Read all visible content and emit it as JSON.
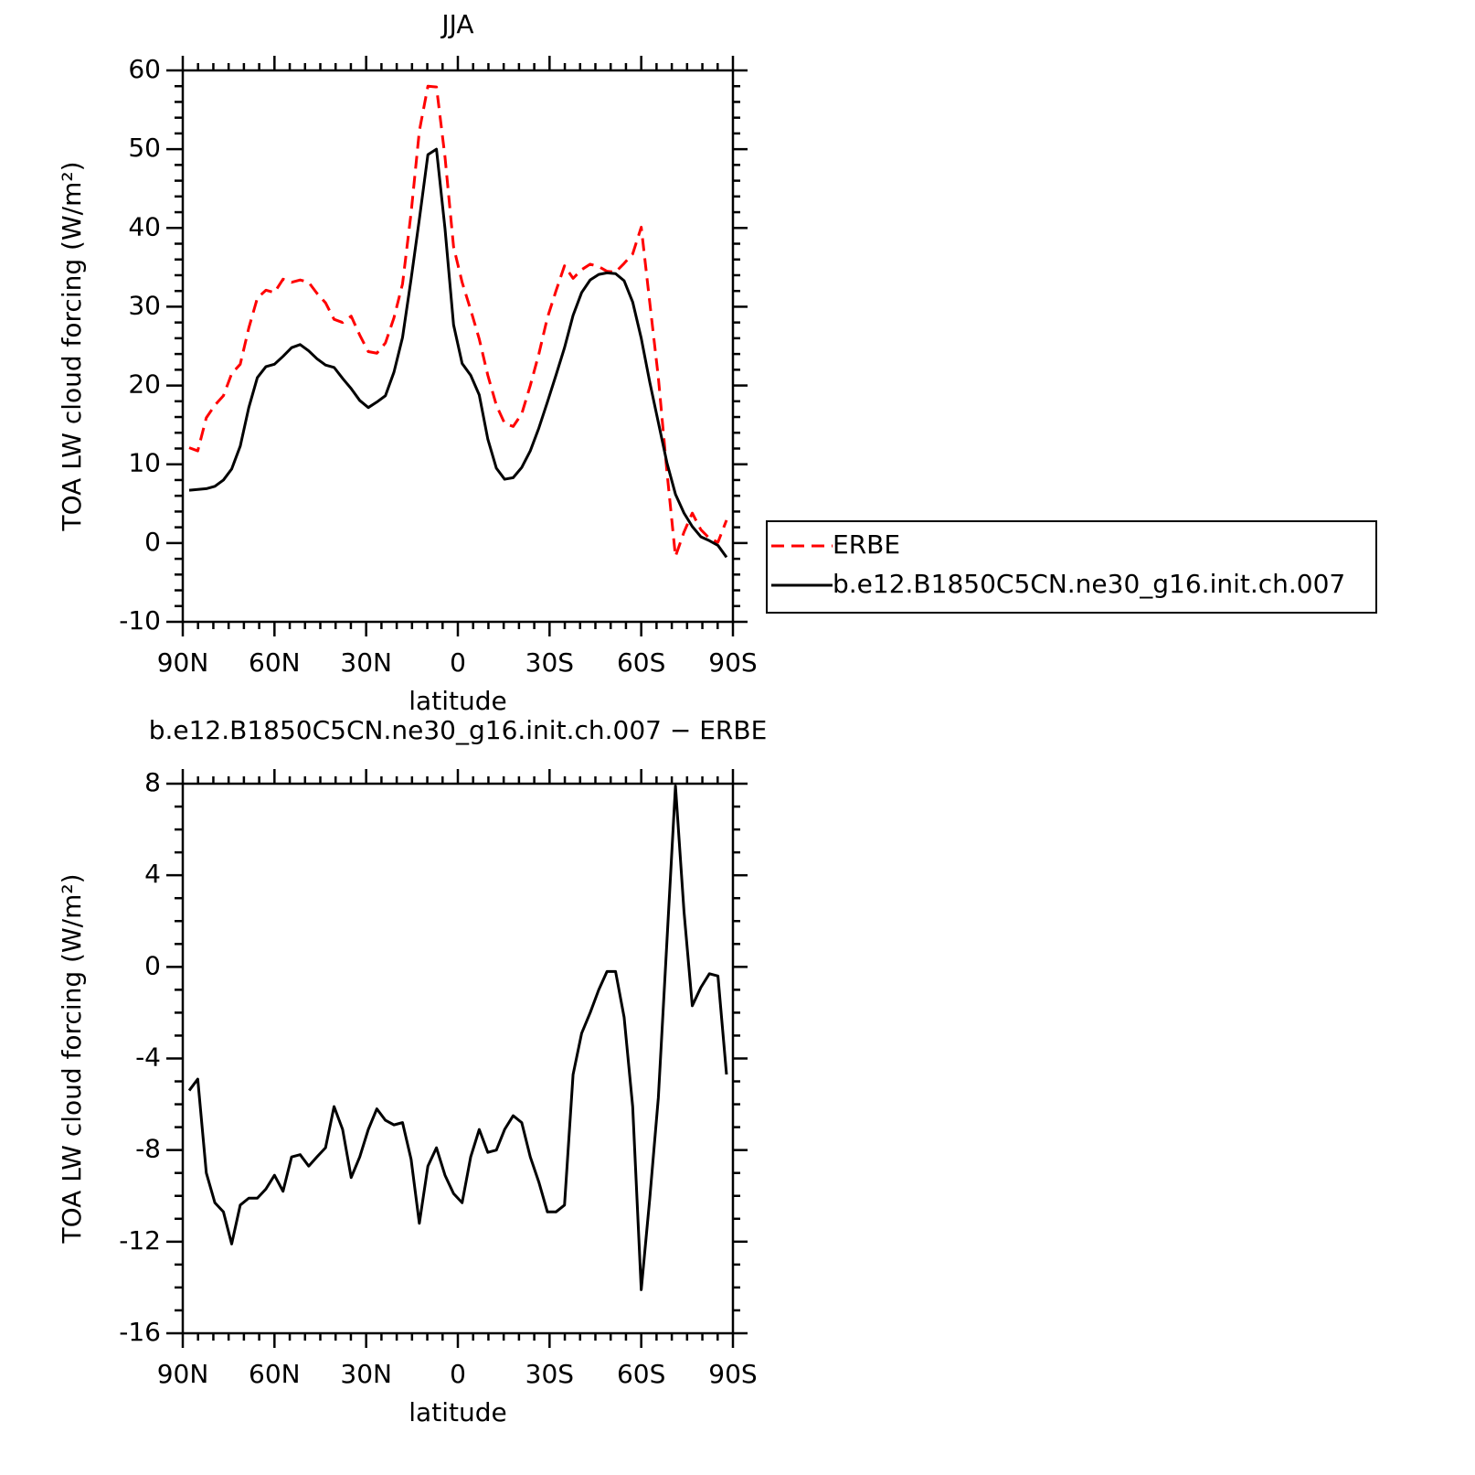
{
  "chart_data": [
    {
      "type": "line",
      "title": "JJA",
      "xlabel": "latitude",
      "ylabel": "TOA LW cloud forcing (W/m²)",
      "x": [
        87.9,
        85.1,
        82.3,
        79.5,
        76.7,
        74.0,
        71.2,
        68.4,
        65.6,
        62.8,
        60.0,
        57.2,
        54.4,
        51.6,
        48.8,
        46.1,
        43.3,
        40.5,
        37.7,
        34.9,
        32.1,
        29.3,
        26.5,
        23.7,
        20.9,
        18.1,
        15.3,
        12.6,
        9.8,
        7.0,
        4.2,
        1.4,
        -1.4,
        -4.2,
        -7.0,
        -9.8,
        -12.6,
        -15.3,
        -18.1,
        -20.9,
        -23.7,
        -26.5,
        -29.3,
        -32.1,
        -34.9,
        -37.7,
        -40.5,
        -43.3,
        -46.1,
        -48.8,
        -51.6,
        -54.4,
        -57.2,
        -60.0,
        -62.8,
        -65.6,
        -68.4,
        -71.2,
        -74.0,
        -76.7,
        -79.5,
        -82.3,
        -85.1,
        -87.9
      ],
      "series": [
        {
          "name": "ERBE",
          "color": "#ff0000",
          "dash": true,
          "values": [
            12.1,
            11.7,
            15.9,
            17.5,
            18.7,
            21.5,
            22.7,
            27.3,
            31.1,
            32.1,
            31.8,
            33.5,
            33.1,
            33.4,
            33.1,
            31.7,
            30.5,
            28.4,
            28.0,
            28.8,
            26.4,
            24.3,
            24.1,
            25.4,
            28.6,
            32.9,
            41.9,
            52.3,
            58.0,
            57.9,
            49.0,
            37.6,
            33.1,
            29.6,
            25.9,
            21.3,
            17.5,
            15.2,
            14.8,
            16.4,
            20.0,
            24.0,
            28.6,
            32.0,
            35.2,
            33.6,
            34.7,
            35.4,
            35.1,
            34.5,
            34.4,
            35.5,
            36.7,
            40.1,
            30.5,
            21.0,
            9.1,
            -1.7,
            1.4,
            3.8,
            1.7,
            0.6,
            0.1,
            2.9
          ]
        },
        {
          "name": "b.e12.B1850C5CN.ne30_g16.init.ch.007",
          "color": "#000000",
          "dash": false,
          "values": [
            6.7,
            6.8,
            6.9,
            7.2,
            8.0,
            9.4,
            12.3,
            17.2,
            21.0,
            22.4,
            22.7,
            23.7,
            24.8,
            25.2,
            24.4,
            23.4,
            22.6,
            22.3,
            20.9,
            19.6,
            18.1,
            17.2,
            17.9,
            18.7,
            21.7,
            26.1,
            33.5,
            41.1,
            49.3,
            50.0,
            39.9,
            27.7,
            22.8,
            21.3,
            18.8,
            13.2,
            9.5,
            8.1,
            8.3,
            9.6,
            11.7,
            14.6,
            17.9,
            21.3,
            24.8,
            28.9,
            31.8,
            33.4,
            34.1,
            34.3,
            34.2,
            33.3,
            30.6,
            26.0,
            20.4,
            15.3,
            10.2,
            6.2,
            3.8,
            2.1,
            0.8,
            0.3,
            -0.3,
            -1.8
          ]
        }
      ],
      "xlim": [
        90,
        -90
      ],
      "xticks": [
        {
          "value": 90,
          "label": "90N"
        },
        {
          "value": 60,
          "label": "60N"
        },
        {
          "value": 30,
          "label": "30N"
        },
        0,
        {
          "value": -30,
          "label": "30S"
        },
        {
          "value": -60,
          "label": "60S"
        },
        {
          "value": -90,
          "label": "90S"
        }
      ],
      "ylim": [
        -10,
        60
      ],
      "yticks": [
        -10,
        0,
        10,
        20,
        30,
        40,
        50,
        60
      ],
      "xminor": 6,
      "yminor": 5,
      "legend": "right"
    },
    {
      "type": "line",
      "title": "b.e12.B1850C5CN.ne30_g16.init.ch.007 − ERBE",
      "xlabel": "latitude",
      "ylabel": "TOA LW cloud forcing (W/m²)",
      "x": [
        87.9,
        85.1,
        82.3,
        79.5,
        76.7,
        74.0,
        71.2,
        68.4,
        65.6,
        62.8,
        60.0,
        57.2,
        54.4,
        51.6,
        48.8,
        46.1,
        43.3,
        40.5,
        37.7,
        34.9,
        32.1,
        29.3,
        26.5,
        23.7,
        20.9,
        18.1,
        15.3,
        12.6,
        9.8,
        7.0,
        4.2,
        1.4,
        -1.4,
        -4.2,
        -7.0,
        -9.8,
        -12.6,
        -15.3,
        -18.1,
        -20.9,
        -23.7,
        -26.5,
        -29.3,
        -32.1,
        -34.9,
        -37.7,
        -40.5,
        -43.3,
        -46.1,
        -48.8,
        -51.6,
        -54.4,
        -57.2,
        -60.0,
        -62.8,
        -65.6,
        -68.4,
        -71.2,
        -74.0,
        -76.7,
        -79.5,
        -82.3,
        -85.1,
        -87.9
      ],
      "series": [
        {
          "color": "#000000",
          "dash": false,
          "values": [
            -5.4,
            -4.9,
            -9.0,
            -10.3,
            -10.7,
            -12.1,
            -10.4,
            -10.1,
            -10.1,
            -9.7,
            -9.1,
            -9.8,
            -8.3,
            -8.2,
            -8.7,
            -8.3,
            -7.9,
            -6.1,
            -7.1,
            -9.2,
            -8.3,
            -7.1,
            -6.2,
            -6.7,
            -6.9,
            -6.8,
            -8.4,
            -11.2,
            -8.7,
            -7.9,
            -9.1,
            -9.9,
            -10.3,
            -8.3,
            -7.1,
            -8.1,
            -8.0,
            -7.1,
            -6.5,
            -6.8,
            -8.3,
            -9.4,
            -10.7,
            -10.7,
            -10.4,
            -4.7,
            -2.9,
            -2.0,
            -1.0,
            -0.2,
            -0.2,
            -2.2,
            -6.1,
            -14.1,
            -10.1,
            -5.7,
            1.1,
            7.9,
            2.4,
            -1.7,
            -0.9,
            -0.3,
            -0.4,
            -4.7
          ]
        }
      ],
      "xlim": [
        90,
        -90
      ],
      "xticks": [
        {
          "value": 90,
          "label": "90N"
        },
        {
          "value": 60,
          "label": "60N"
        },
        {
          "value": 30,
          "label": "30N"
        },
        0,
        {
          "value": -30,
          "label": "30S"
        },
        {
          "value": -60,
          "label": "60S"
        },
        {
          "value": -90,
          "label": "90S"
        }
      ],
      "ylim": [
        -16,
        8
      ],
      "yticks": [
        -16,
        -12,
        -8,
        -4,
        0,
        4,
        8
      ],
      "xminor": 6,
      "yminor": 4
    }
  ]
}
